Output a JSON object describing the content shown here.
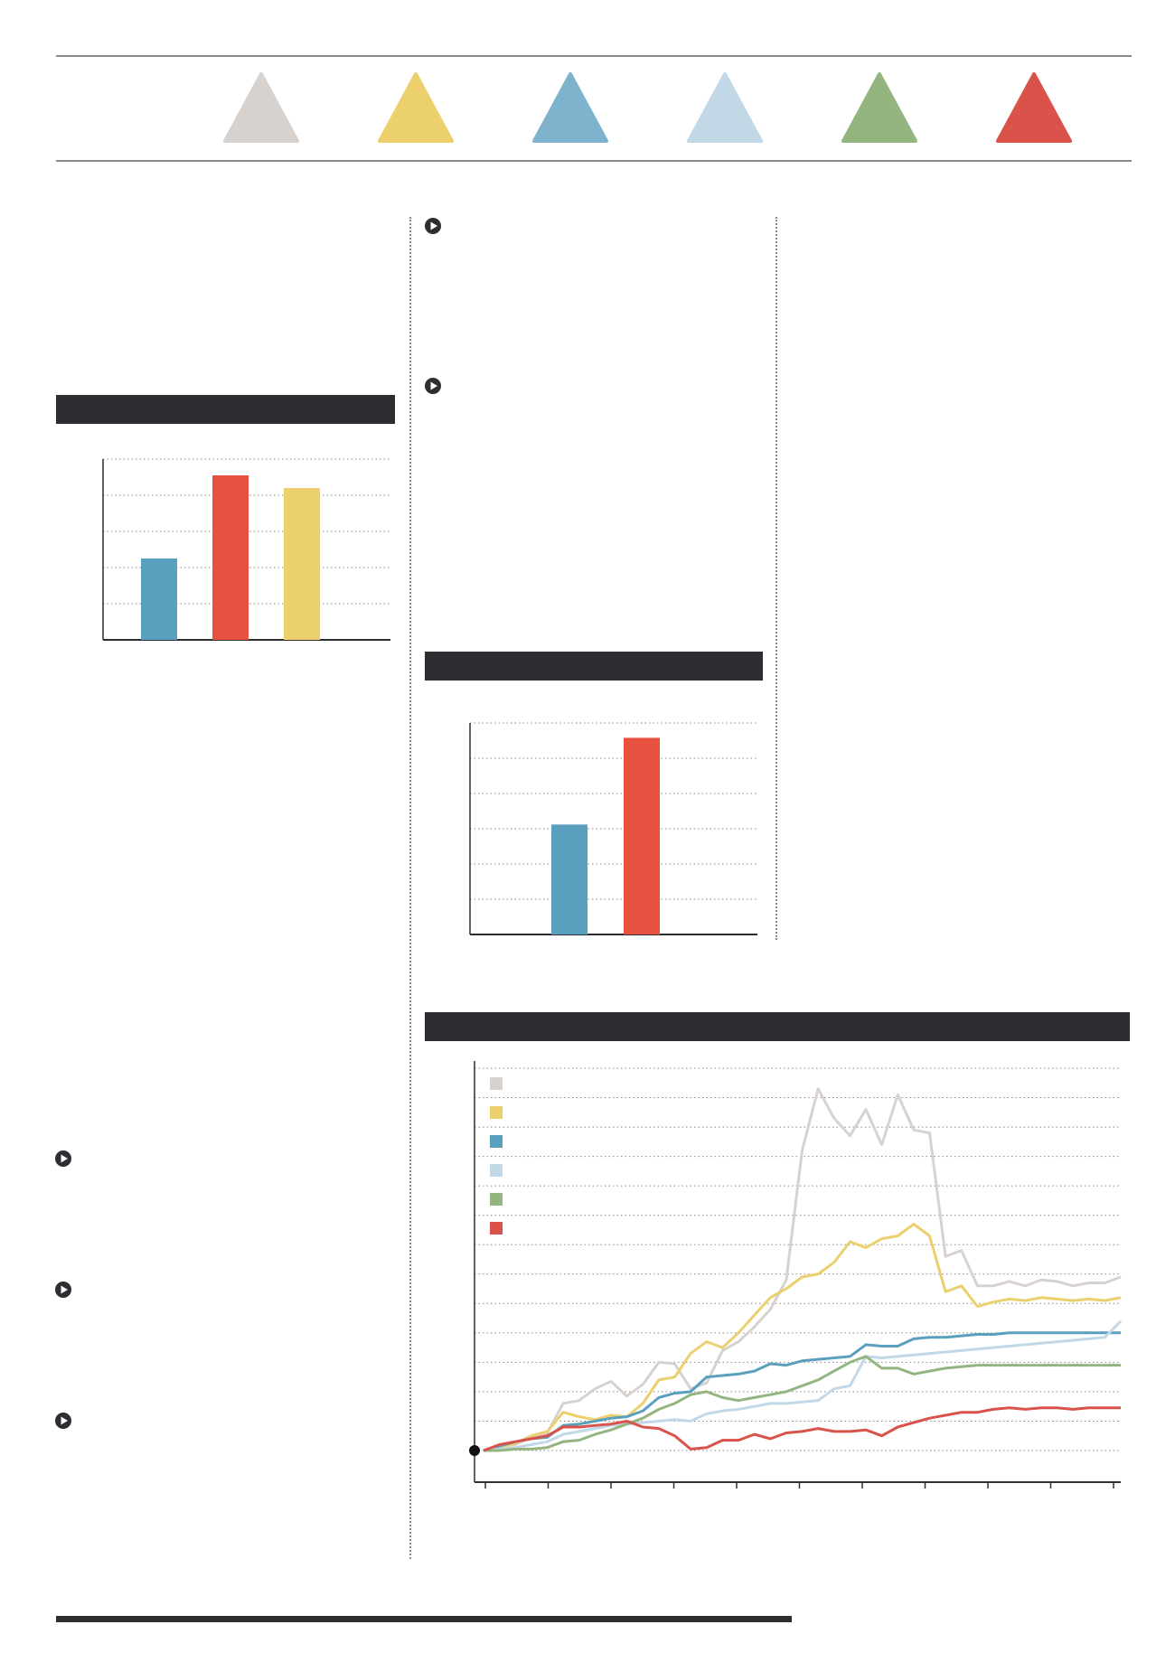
{
  "legend_colors": [
    "#d8d2cf",
    "#ecd06e",
    "#7fb3cd",
    "#c2d8e7",
    "#94b580",
    "#d9534a"
  ],
  "accent_colors": {
    "blue": "#5b9fbe",
    "red": "#e8503f",
    "yellow": "#ecd06e",
    "dark": "#2c2e32"
  },
  "icons": {
    "bullet": "play-circle-icon",
    "triangle": "triangle-icon"
  },
  "chart_data": [
    {
      "type": "bar",
      "categories": [
        "",
        "",
        ""
      ],
      "values": [
        45,
        91,
        84
      ],
      "colors": [
        "#5b9fbe",
        "#e8503f",
        "#ecd06e"
      ],
      "ylim": [
        0,
        100
      ],
      "grid": true
    },
    {
      "type": "bar",
      "categories": [
        "",
        ""
      ],
      "values": [
        52,
        93
      ],
      "colors": [
        "#5b9fbe",
        "#e8503f"
      ],
      "ylim": [
        0,
        100
      ],
      "grid": true
    },
    {
      "type": "line",
      "x": [
        0,
        1,
        2,
        3,
        4,
        5,
        6,
        7,
        8,
        9,
        10,
        11,
        12,
        13,
        14,
        15,
        16,
        17,
        18,
        19,
        20,
        21,
        22,
        23,
        24,
        25,
        26,
        27,
        28,
        29,
        30,
        31,
        32,
        33,
        34,
        35,
        36,
        37,
        38,
        39,
        40
      ],
      "ylim": [
        0,
        14
      ],
      "grid": true,
      "legend": "top-left",
      "series": [
        {
          "color": "#d8d2cf",
          "values": [
            1.0,
            1.15,
            1.2,
            1.45,
            1.6,
            2.6,
            2.7,
            3.1,
            3.35,
            2.85,
            3.25,
            4.0,
            3.95,
            3.1,
            3.3,
            4.4,
            4.7,
            5.2,
            5.8,
            6.8,
            11.2,
            13.3,
            12.3,
            11.7,
            12.6,
            11.4,
            13.1,
            11.9,
            11.8,
            7.6,
            7.8,
            6.6,
            6.6,
            6.75,
            6.6,
            6.8,
            6.75,
            6.6,
            6.7,
            6.7,
            6.9
          ]
        },
        {
          "color": "#ecd06e",
          "values": [
            1.0,
            1.1,
            1.25,
            1.5,
            1.65,
            2.3,
            2.15,
            2.05,
            2.2,
            2.15,
            2.6,
            3.4,
            3.5,
            4.3,
            4.7,
            4.5,
            5.0,
            5.6,
            6.2,
            6.5,
            6.9,
            7.0,
            7.4,
            8.1,
            7.9,
            8.2,
            8.3,
            8.7,
            8.3,
            6.4,
            6.6,
            5.9,
            6.05,
            6.15,
            6.1,
            6.2,
            6.15,
            6.1,
            6.15,
            6.1,
            6.2
          ]
        },
        {
          "color": "#5b9fbe",
          "values": [
            1.0,
            1.15,
            1.3,
            1.4,
            1.45,
            1.85,
            1.9,
            2.0,
            2.1,
            2.15,
            2.35,
            2.8,
            2.95,
            3.0,
            3.5,
            3.55,
            3.6,
            3.7,
            3.95,
            3.9,
            4.05,
            4.1,
            4.15,
            4.2,
            4.6,
            4.55,
            4.55,
            4.8,
            4.85,
            4.85,
            4.9,
            4.95,
            4.95,
            5.0,
            5.0,
            5.0,
            5.0,
            5.0,
            5.0,
            5.0,
            5.0
          ]
        },
        {
          "color": "#c2d8e7",
          "values": [
            1.0,
            1.05,
            1.1,
            1.2,
            1.3,
            1.55,
            1.65,
            1.75,
            1.85,
            1.9,
            1.95,
            2.0,
            2.05,
            2.0,
            2.25,
            2.35,
            2.4,
            2.5,
            2.6,
            2.6,
            2.65,
            2.7,
            3.1,
            3.2,
            4.2,
            4.15,
            4.2,
            4.25,
            4.3,
            4.35,
            4.4,
            4.45,
            4.5,
            4.55,
            4.6,
            4.65,
            4.7,
            4.75,
            4.8,
            4.85,
            5.4
          ]
        },
        {
          "color": "#94b580",
          "values": [
            1.0,
            1.0,
            1.05,
            1.05,
            1.1,
            1.3,
            1.35,
            1.55,
            1.7,
            1.9,
            2.1,
            2.4,
            2.6,
            2.9,
            3.0,
            2.8,
            2.7,
            2.8,
            2.9,
            3.0,
            3.2,
            3.4,
            3.7,
            4.0,
            4.2,
            3.8,
            3.8,
            3.6,
            3.7,
            3.8,
            3.85,
            3.9,
            3.9,
            3.9,
            3.9,
            3.9,
            3.9,
            3.9,
            3.9,
            3.9,
            3.9
          ]
        },
        {
          "color": "#d9534a",
          "values": [
            1.0,
            1.2,
            1.3,
            1.4,
            1.5,
            1.8,
            1.8,
            1.85,
            1.9,
            2.0,
            1.8,
            1.75,
            1.5,
            1.05,
            1.1,
            1.35,
            1.35,
            1.55,
            1.4,
            1.6,
            1.65,
            1.75,
            1.65,
            1.65,
            1.7,
            1.5,
            1.8,
            1.95,
            2.1,
            2.2,
            2.3,
            2.3,
            2.4,
            2.45,
            2.4,
            2.45,
            2.45,
            2.4,
            2.45,
            2.45,
            2.45
          ]
        }
      ]
    }
  ]
}
